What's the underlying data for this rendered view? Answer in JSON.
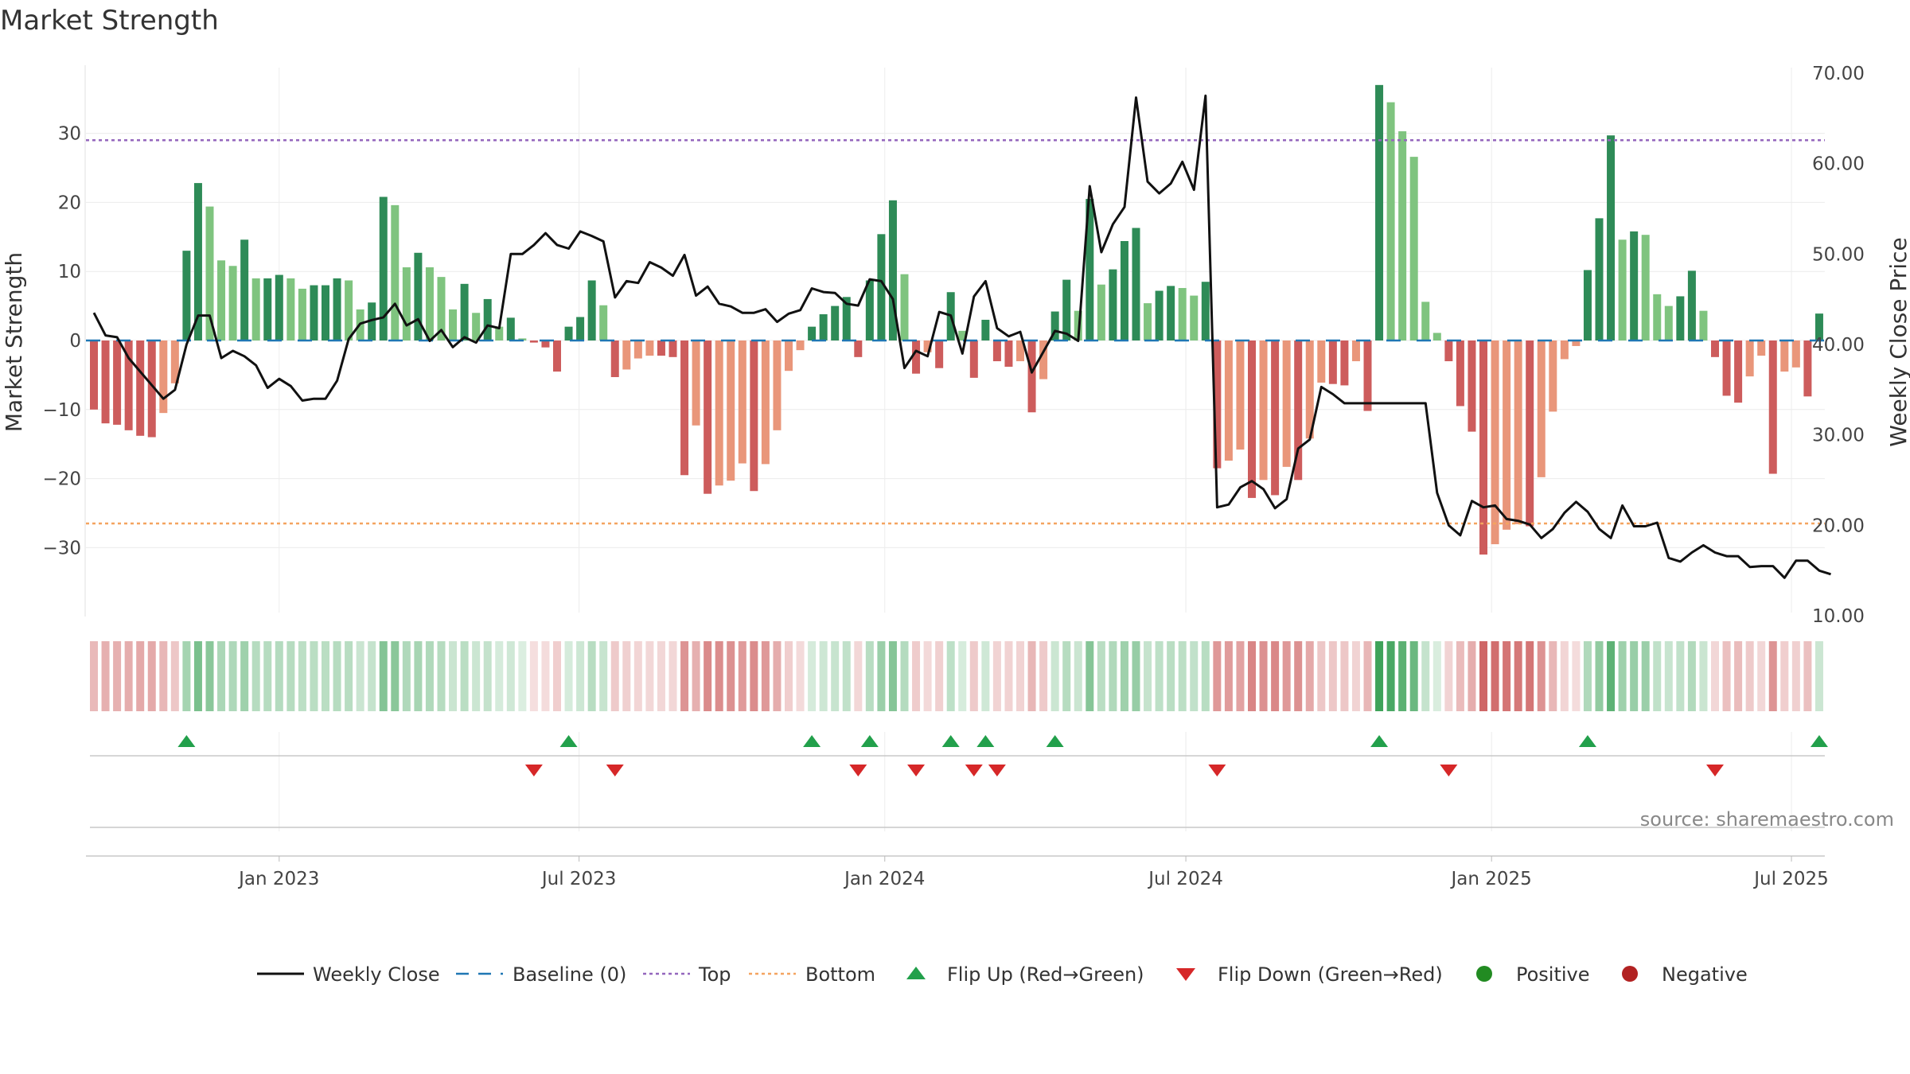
{
  "chart_data": {
    "type": "bar",
    "title": "Market Strength",
    "ylabel_left": "Market Strength",
    "ylabel_right": "Weekly Close Price",
    "ylim_left": [
      -39,
      40
    ],
    "ylim_right": [
      10,
      70
    ],
    "left_ticks": [
      30,
      20,
      10,
      0,
      -10,
      -20,
      -30
    ],
    "left_tick_labels": [
      "30",
      "20",
      "10",
      "0",
      "−10",
      "−20",
      "−30"
    ],
    "right_ticks": [
      70,
      60,
      50,
      40,
      30,
      20,
      10
    ],
    "right_tick_labels": [
      "70.00",
      "60.00",
      "50.00",
      "40.00",
      "30.00",
      "20.00",
      "10.00"
    ],
    "top_level": 29,
    "bottom_level": -26.5,
    "start_week_index": 0,
    "x_ticks": [
      {
        "label": "Jan 2023",
        "week": 16.0
      },
      {
        "label": "Jul 2023",
        "week": 41.9
      },
      {
        "label": "Jan 2024",
        "week": 68.3
      },
      {
        "label": "Jul 2024",
        "week": 94.3
      },
      {
        "label": "Jan 2025",
        "week": 120.7
      },
      {
        "label": "Jul 2025",
        "week": 146.6
      }
    ],
    "strength": [
      -10,
      -12,
      -12.2,
      -13,
      -13.8,
      -14,
      -10.5,
      -6.2,
      13,
      22.8,
      19.4,
      11.6,
      10.8,
      14.6,
      9,
      9,
      9.5,
      9,
      7.5,
      8,
      8,
      9,
      8.7,
      4.5,
      5.5,
      20.8,
      19.6,
      10.6,
      12.7,
      10.6,
      9.2,
      4.5,
      8.2,
      4,
      6,
      2,
      3.3,
      0.3,
      -0.3,
      -1,
      -4.5,
      2,
      3.4,
      8.7,
      5.1,
      -5.3,
      -4.2,
      -2.6,
      -2.2,
      -2.2,
      -2.4,
      -19.5,
      -12.3,
      -22.2,
      -21,
      -20.3,
      -17.8,
      -21.8,
      -17.9,
      -13,
      -4.4,
      -1.4,
      2,
      3.8,
      5,
      6.3,
      -2.4,
      8.7,
      15.4,
      20.3,
      9.6,
      -4.8,
      -1.7,
      -4,
      7,
      1.4,
      -5.4,
      3,
      -3,
      -3.8,
      -3,
      -10.4,
      -5.6,
      4.2,
      8.8,
      4.3,
      20.5,
      8.1,
      10.3,
      14.4,
      16.3,
      5.4,
      7.2,
      7.9,
      7.6,
      6.5,
      8.5,
      -18.5,
      -17.4,
      -15.8,
      -22.8,
      -20.2,
      -22.4,
      -18.3,
      -20.2,
      -14.2,
      -6.1,
      -6.3,
      -6.5,
      -3,
      -10.2,
      37,
      34.5,
      30.3,
      26.6,
      5.6,
      1.1,
      -3,
      -9.5,
      -13.2,
      -31,
      -29.5,
      -27.4,
      -26.6,
      -26.9,
      -19.8,
      -10.3,
      -2.7,
      -0.8,
      10.2,
      17.7,
      29.7,
      14.6,
      15.8,
      15.3,
      6.7,
      5,
      6.4,
      10.1,
      4.3,
      -2.4,
      -8,
      -9,
      -5.2,
      -2.2,
      -19.3,
      -4.5,
      -3.9,
      -8.1,
      3.9
    ],
    "close": [
      43.5,
      41,
      40.8,
      38.5,
      37,
      35.5,
      34,
      35,
      40,
      43.2,
      43.2,
      38.5,
      39.3,
      38.7,
      37.7,
      35.2,
      36.2,
      35.4,
      33.8,
      34,
      34,
      36,
      40.6,
      42.3,
      42.7,
      43,
      44.5,
      42.1,
      42.8,
      40.4,
      41.6,
      39.7,
      40.8,
      40.2,
      42.1,
      41.8,
      50,
      50,
      51,
      52.3,
      51,
      50.6,
      52.5,
      52,
      51.4,
      45.2,
      47,
      46.8,
      49.1,
      48.5,
      47.6,
      49.9,
      45.4,
      46.4,
      44.5,
      44.2,
      43.5,
      43.5,
      43.9,
      42.5,
      43.4,
      43.8,
      46.2,
      45.8,
      45.7,
      44.5,
      44.3,
      47.2,
      47,
      45,
      37.4,
      39.3,
      38.7,
      43.6,
      43.2,
      39,
      45.3,
      47,
      41.8,
      40.9,
      41.4,
      36.9,
      39.2,
      41.5,
      41.2,
      40.4,
      57.5,
      50.2,
      53.3,
      55.2,
      67.3,
      58,
      56.7,
      57.8,
      60.2,
      57.1,
      67.5,
      22,
      22.3,
      24.2,
      24.9,
      24,
      21.9,
      22.9,
      28.5,
      29.5,
      35.3,
      34.5,
      33.5,
      33.5,
      33.5,
      33.5,
      33.5,
      33.5,
      33.5,
      33.5,
      23.6,
      20,
      18.9,
      22.7,
      22,
      22.2,
      20.7,
      20.5,
      20.1,
      18.6,
      19.6,
      21.4,
      22.6,
      21.5,
      19.6,
      18.6,
      22.2,
      19.9,
      19.9,
      20.3,
      16.4,
      16,
      17,
      17.8,
      17,
      16.6,
      16.6,
      15.4,
      15.5,
      15.5,
      14.2,
      16.1,
      16.1,
      15,
      14.6
    ]
  },
  "legend": {
    "weekly_close": "Weekly Close",
    "baseline": "Baseline (0)",
    "top": "Top",
    "bottom": "Bottom",
    "flip_up": "Flip Up (Red→Green)",
    "flip_down": "Flip Down (Green→Red)",
    "positive": "Positive",
    "negative": "Negative"
  },
  "source": "source: sharemaestro.com",
  "colors": {
    "green_dark": "#2e8b57",
    "green_light": "#7fc47f",
    "red_dark": "#cd5c5c",
    "red_light": "#e9967a",
    "close_line": "#111111",
    "baseline": "#1f77b4",
    "top_line": "#9467bd",
    "bottom_line": "#f4a460",
    "flip_up": "#22a04b",
    "flip_down": "#d62728",
    "positive": "#228b22",
    "negative": "#b22222"
  }
}
